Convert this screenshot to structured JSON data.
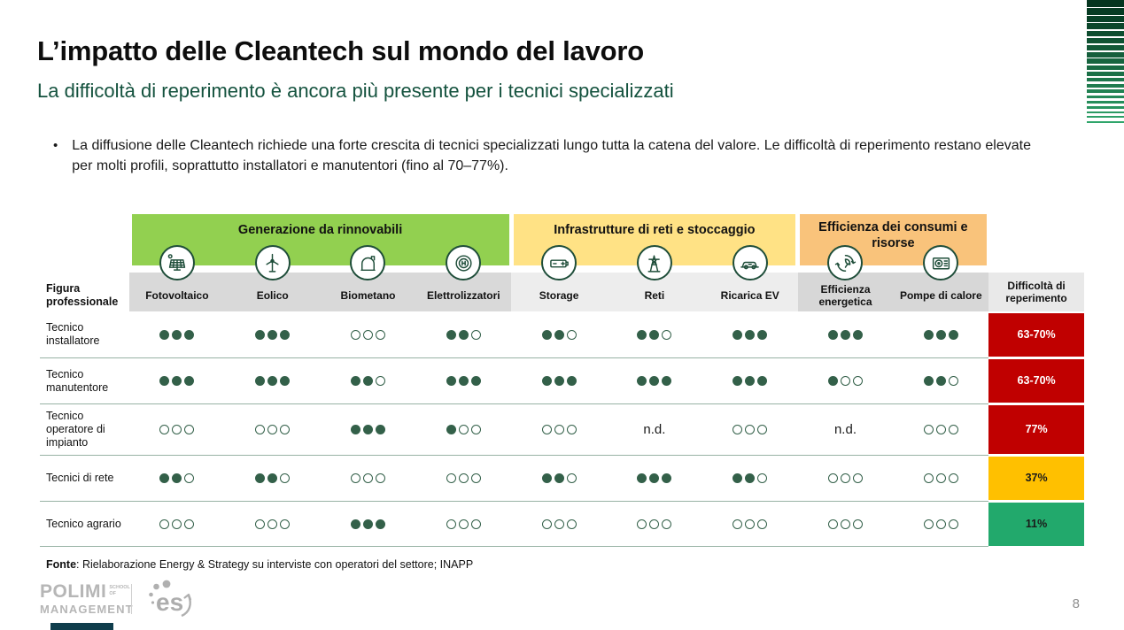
{
  "page": {
    "title": "L’impatto delle Cleantech sul mondo del lavoro",
    "subtitle": "La difficoltà di reperimento è ancora più presente per i tecnici specializzati",
    "bullet_marker": "•",
    "bullet_text": "La diffusione delle Cleantech richiede una forte crescita di tecnici specializzati lungo tutta la catena del valore. Le difficoltà di reperimento restano elevate per molti profili, soprattutto installatori e manutentori (fino al 70–77%).",
    "page_number": "8"
  },
  "source": {
    "label": "Fonte",
    "text": ": Rielaborazione Energy & Strategy su interviste con operatori del settore; INAPP"
  },
  "footer_logos": {
    "polimi": "POLIMI",
    "polimi_school": "SCHOOL OF",
    "polimi_mgmt": "MANAGEMENT",
    "es": "es"
  },
  "colors": {
    "subtitle": "#14523E",
    "dot": "#336049",
    "icon_stroke": "#1F4E3A",
    "separator": "#97B2A4",
    "header_grays": [
      "#D9D9D9",
      "#EDEDED",
      "#D7D7D7"
    ],
    "difficulty_header_bg": "#E9E9E9",
    "stripe_start": "#05351F",
    "stripe_end": "#2FA56B",
    "accent_bar": "#0F3D4C"
  },
  "table": {
    "corner_label": "Figura professionale",
    "rating_scale_max": 3,
    "no_data_label": "n.d.",
    "groups": [
      {
        "label": "Generazione da rinnovabili",
        "color": "#92D050",
        "span": 4
      },
      {
        "label": "Infrastrutture di reti e stoccaggio",
        "color": "#FFE285",
        "span": 3
      },
      {
        "label": "Efficienza dei consumi e risorse",
        "color": "#F9C37B",
        "span": 2
      }
    ],
    "columns": [
      {
        "label": "Fotovoltaico",
        "icon": "solar-panel",
        "group": 0
      },
      {
        "label": "Eolico",
        "icon": "wind-turbine",
        "group": 0
      },
      {
        "label": "Biometano",
        "icon": "biomethane-tank",
        "group": 0
      },
      {
        "label": "Elettrolizzatori",
        "icon": "electrolyzer",
        "group": 0
      },
      {
        "label": "Storage",
        "icon": "battery",
        "group": 1
      },
      {
        "label": "Reti",
        "icon": "transmission-tower",
        "group": 1
      },
      {
        "label": "Ricarica EV",
        "icon": "ev-car",
        "group": 1
      },
      {
        "label": "Efficienza energetica",
        "icon": "energy-efficiency",
        "group": 2
      },
      {
        "label": "Pompe di calore",
        "icon": "heat-pump",
        "group": 2
      }
    ],
    "difficulty_column_label": "Difficoltà di reperimento",
    "rows": [
      {
        "label": "Tecnico installatore",
        "ratings": [
          3,
          3,
          0,
          2,
          2,
          2,
          3,
          3,
          3
        ],
        "difficulty": {
          "value": "63-70%",
          "bg": "#C00000",
          "fg": "#FFFFFF"
        }
      },
      {
        "label": "Tecnico manutentore",
        "ratings": [
          3,
          3,
          2,
          3,
          3,
          3,
          3,
          1,
          2
        ],
        "difficulty": {
          "value": "63-70%",
          "bg": "#C00000",
          "fg": "#FFFFFF"
        }
      },
      {
        "label": "Tecnico operatore di impianto",
        "ratings": [
          0,
          0,
          3,
          1,
          0,
          "n.d.",
          0,
          "n.d.",
          0
        ],
        "difficulty": {
          "value": "77%",
          "bg": "#C00000",
          "fg": "#FFFFFF"
        }
      },
      {
        "label": "Tecnici di rete",
        "ratings": [
          2,
          2,
          0,
          0,
          2,
          3,
          2,
          0,
          0
        ],
        "difficulty": {
          "value": "37%",
          "bg": "#FFC000",
          "fg": "#1A1A1A"
        }
      },
      {
        "label": "Tecnico agrario",
        "ratings": [
          0,
          0,
          3,
          0,
          0,
          0,
          0,
          0,
          0
        ],
        "difficulty": {
          "value": "11%",
          "bg": "#22A96C",
          "fg": "#1A1A1A"
        }
      }
    ]
  }
}
